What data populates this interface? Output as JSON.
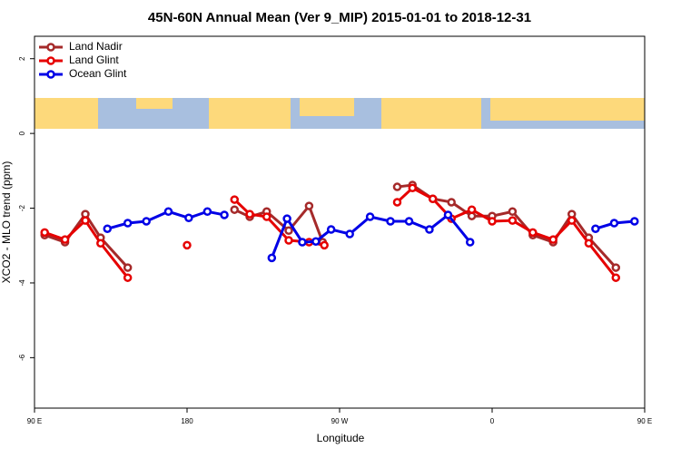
{
  "chart_data": {
    "type": "line",
    "title": "45N-60N Annual Mean (Ver 9_MIP)   2015-01-01 to 2018-12-31",
    "x_label": "Longitude",
    "y_label": "XCO2 - MLO trend (ppm)",
    "xlim": [
      90,
      450
    ],
    "ylim": [
      -7.35,
      2.6
    ],
    "xticks": [
      {
        "value": 90,
        "label": "90 E"
      },
      180,
      {
        "value": 270,
        "label": "90 W"
      },
      {
        "value": 360,
        "label": "0"
      },
      {
        "value": 450,
        "label": "90 E"
      }
    ],
    "xticks_extra_note": null,
    "yticks": [
      2,
      0,
      -2,
      -4,
      -6
    ],
    "legend_position": "top-left",
    "series": [
      {
        "name": "Land Nadir",
        "color": "#a52a2a",
        "x": [
          96,
          108,
          120,
          129,
          145,
          null,
          208,
          217,
          227,
          240,
          252,
          260,
          null,
          304,
          313,
          325,
          336,
          348,
          360,
          372,
          384,
          396,
          407,
          417,
          433
        ],
        "values": [
          -2.72,
          -2.91,
          -2.16,
          -2.79,
          -3.59,
          null,
          -2.04,
          -2.23,
          -2.09,
          -2.6,
          -1.94,
          -2.91,
          null,
          -1.43,
          -1.38,
          -1.75,
          -1.84,
          -2.21,
          -2.21,
          -2.09,
          -2.72,
          -2.91,
          -2.16,
          -2.79,
          -3.59
        ]
      },
      {
        "name": "Land Glint",
        "color": "#e60000",
        "x": [
          96,
          108,
          120,
          129,
          145,
          null,
          180,
          null,
          208,
          217,
          227,
          240,
          252,
          261,
          null,
          304,
          313,
          325,
          336,
          348,
          360,
          372,
          384,
          396,
          407,
          417,
          433
        ],
        "values": [
          -2.65,
          -2.84,
          -2.33,
          -2.94,
          -3.86,
          null,
          -2.99,
          null,
          -1.77,
          -2.16,
          -2.23,
          -2.86,
          -2.91,
          -2.99,
          null,
          -1.84,
          -1.46,
          -1.75,
          -2.28,
          -2.04,
          -2.35,
          -2.33,
          -2.65,
          -2.84,
          -2.33,
          -2.94,
          -3.86
        ]
      },
      {
        "name": "Ocean Glint",
        "color": "#0000e6",
        "x": [
          133,
          145,
          156,
          169,
          181,
          192,
          202,
          null,
          230,
          239,
          248,
          256,
          265,
          276,
          288,
          300,
          311,
          323,
          334,
          347,
          null,
          421,
          432,
          444
        ],
        "values": [
          -2.55,
          -2.4,
          -2.35,
          -2.09,
          -2.26,
          -2.09,
          -2.18,
          null,
          -3.33,
          -2.28,
          -2.91,
          -2.89,
          -2.57,
          -2.69,
          -2.23,
          -2.35,
          -2.35,
          -2.57,
          -2.18,
          -2.91,
          null,
          -2.55,
          -2.4,
          -2.35
        ]
      }
    ]
  }
}
